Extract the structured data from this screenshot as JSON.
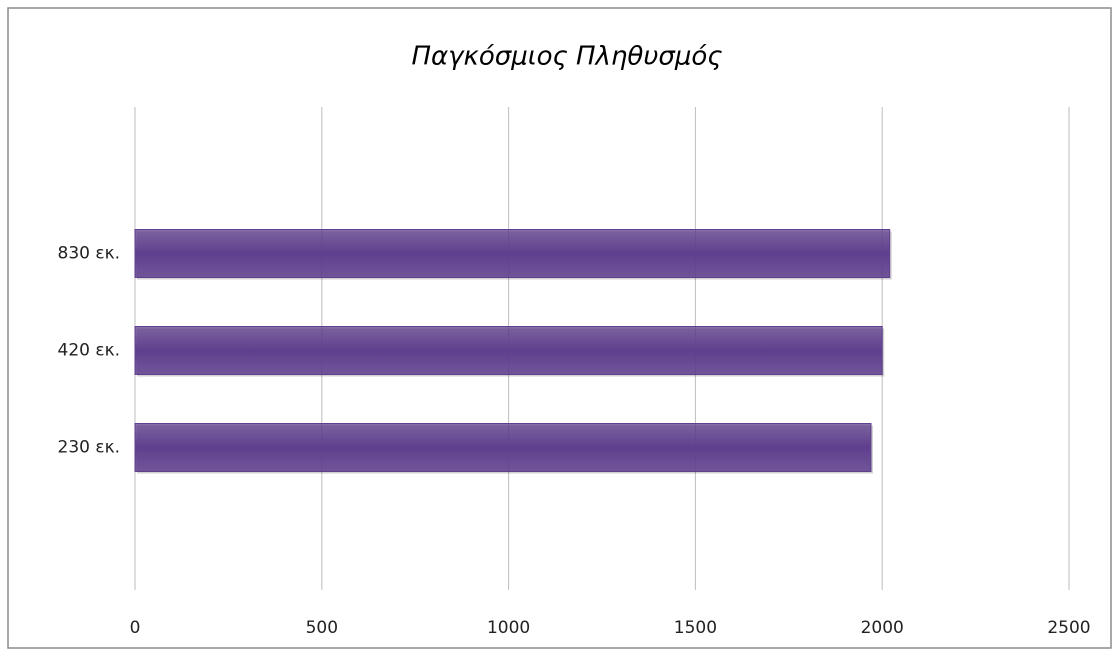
{
  "chart_data": {
    "type": "barh",
    "title": "Παγκόσμιος Πληθυσμός",
    "categories": [
      "230 εκ.",
      "420 εκ.",
      "830 εκ."
    ],
    "values": [
      1970,
      2000,
      2020
    ],
    "color": "#5f3f8e",
    "xlim": [
      0,
      2500
    ],
    "xticks": [
      0,
      500,
      1000,
      1500,
      2000,
      2500
    ],
    "grid": true
  }
}
